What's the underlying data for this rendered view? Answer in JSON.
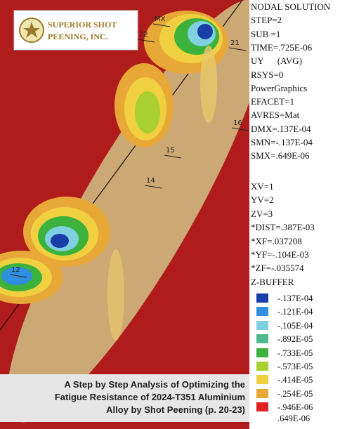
{
  "logo": {
    "line1": "SUPERIOR SHOT",
    "line2": "PEENING, INC."
  },
  "plot_labels": [
    "MX",
    "22",
    "21",
    "16",
    "15",
    "14",
    "12"
  ],
  "solution_info": [
    "NODAL SOLUTION",
    "STEP=2",
    "SUB =1",
    "TIME=.725E-06",
    "UY      (AVG)",
    "RSYS=0",
    "PowerGraphics",
    "EFACET=1",
    "AVRES=Mat",
    "DMX=.137E-04",
    "SMN=-.137E-04",
    "SMX=.649E-06"
  ],
  "view_info": [
    "XV=1",
    "YV=2",
    "ZV=3",
    "*DIST=.387E-03",
    "*XF=.037208",
    "*YF=-.104E-03",
    "*ZF=-.035574",
    "Z-BUFFER"
  ],
  "legend": {
    "entries": [
      {
        "label": "-.137E-04",
        "color": "#1a3ea8"
      },
      {
        "label": "-.121E-04",
        "color": "#2f8ee0"
      },
      {
        "label": "-.105E-04",
        "color": "#7fd0e0"
      },
      {
        "label": "-.892E-05",
        "color": "#50b890"
      },
      {
        "label": "-.733E-05",
        "color": "#3cb13c"
      },
      {
        "label": "-.573E-05",
        "color": "#a8d030"
      },
      {
        "label": "-.414E-05",
        "color": "#f0d040"
      },
      {
        "label": "-.254E-05",
        "color": "#e8a838"
      },
      {
        "label": "-.946E-06",
        "color": "#e02020"
      }
    ],
    "end_label": ".649E-06"
  },
  "caption": [
    "A Step by Step Analysis of Optimizing the",
    "Fatigue Resistance of 2024-T351 Aluminium",
    "Alloy by Shot Peening (p. 20-23)"
  ]
}
